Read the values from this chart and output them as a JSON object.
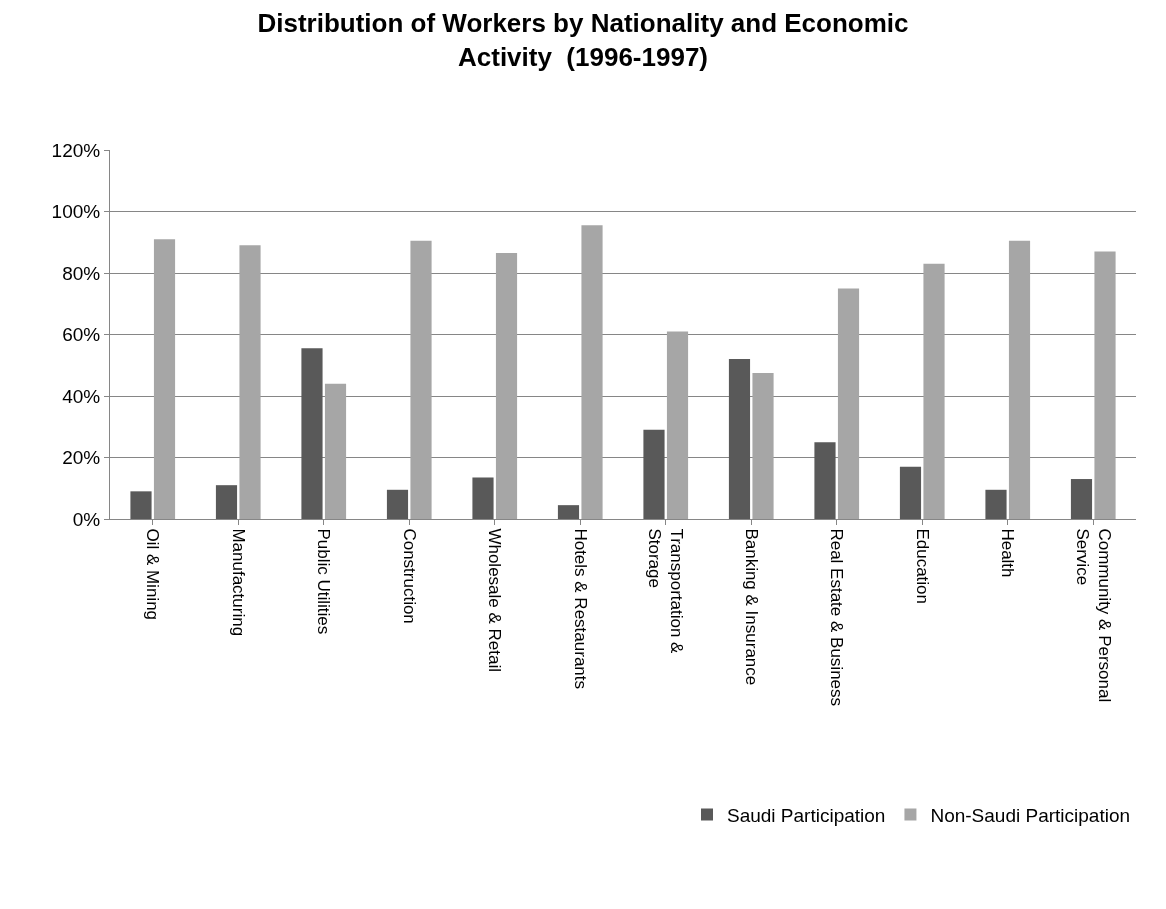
{
  "chart_data": {
    "type": "bar",
    "title": "Distribution of Workers by Nationality and Economic Activity  (1996-1997)",
    "categories": [
      "Oil & Mining",
      "Manufacturing",
      "Public Utilities",
      "Construction",
      "Wholesale & Retail",
      "Hotels & Restaurants",
      "Transportation & Storage",
      "Banking & Insurance",
      "Real Estate & Business",
      "Education",
      "Health",
      "Community & Personal Service"
    ],
    "series": [
      {
        "name": "Saudi Participation",
        "color": "#595959",
        "values": [
          9,
          11,
          55.5,
          9.5,
          13.5,
          4.5,
          29,
          52,
          25,
          17,
          9.5,
          13
        ]
      },
      {
        "name": "Non-Saudi Participation",
        "color": "#a6a6a6",
        "values": [
          91,
          89,
          44,
          90.5,
          86.5,
          95.5,
          61,
          47.5,
          75,
          83,
          90.5,
          87
        ]
      }
    ],
    "ylim": [
      0,
      120
    ],
    "yticks": [
      {
        "value": 0,
        "label": "0%"
      },
      {
        "value": 20,
        "label": "20%"
      },
      {
        "value": 40,
        "label": "40%"
      },
      {
        "value": 60,
        "label": "60%"
      },
      {
        "value": 80,
        "label": "80%"
      },
      {
        "value": 100,
        "label": "100%"
      },
      {
        "value": 120,
        "label": "120%"
      }
    ],
    "grid": "y",
    "legend": "bottom right"
  }
}
